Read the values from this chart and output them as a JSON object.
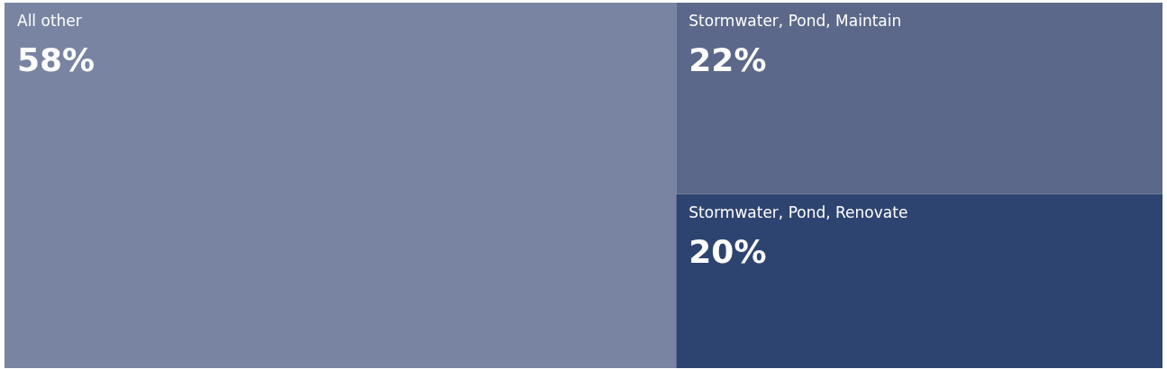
{
  "chart_data": {
    "type": "other",
    "categories": [
      "All other",
      "Stormwater, Pond, Maintain",
      "Stormwater, Pond, Renovate"
    ],
    "values": [
      58,
      22,
      20
    ],
    "value_labels": [
      "58%",
      "22%",
      "20%"
    ],
    "colors": [
      "#7884a1",
      "#5b6889",
      "#2e4470"
    ]
  }
}
